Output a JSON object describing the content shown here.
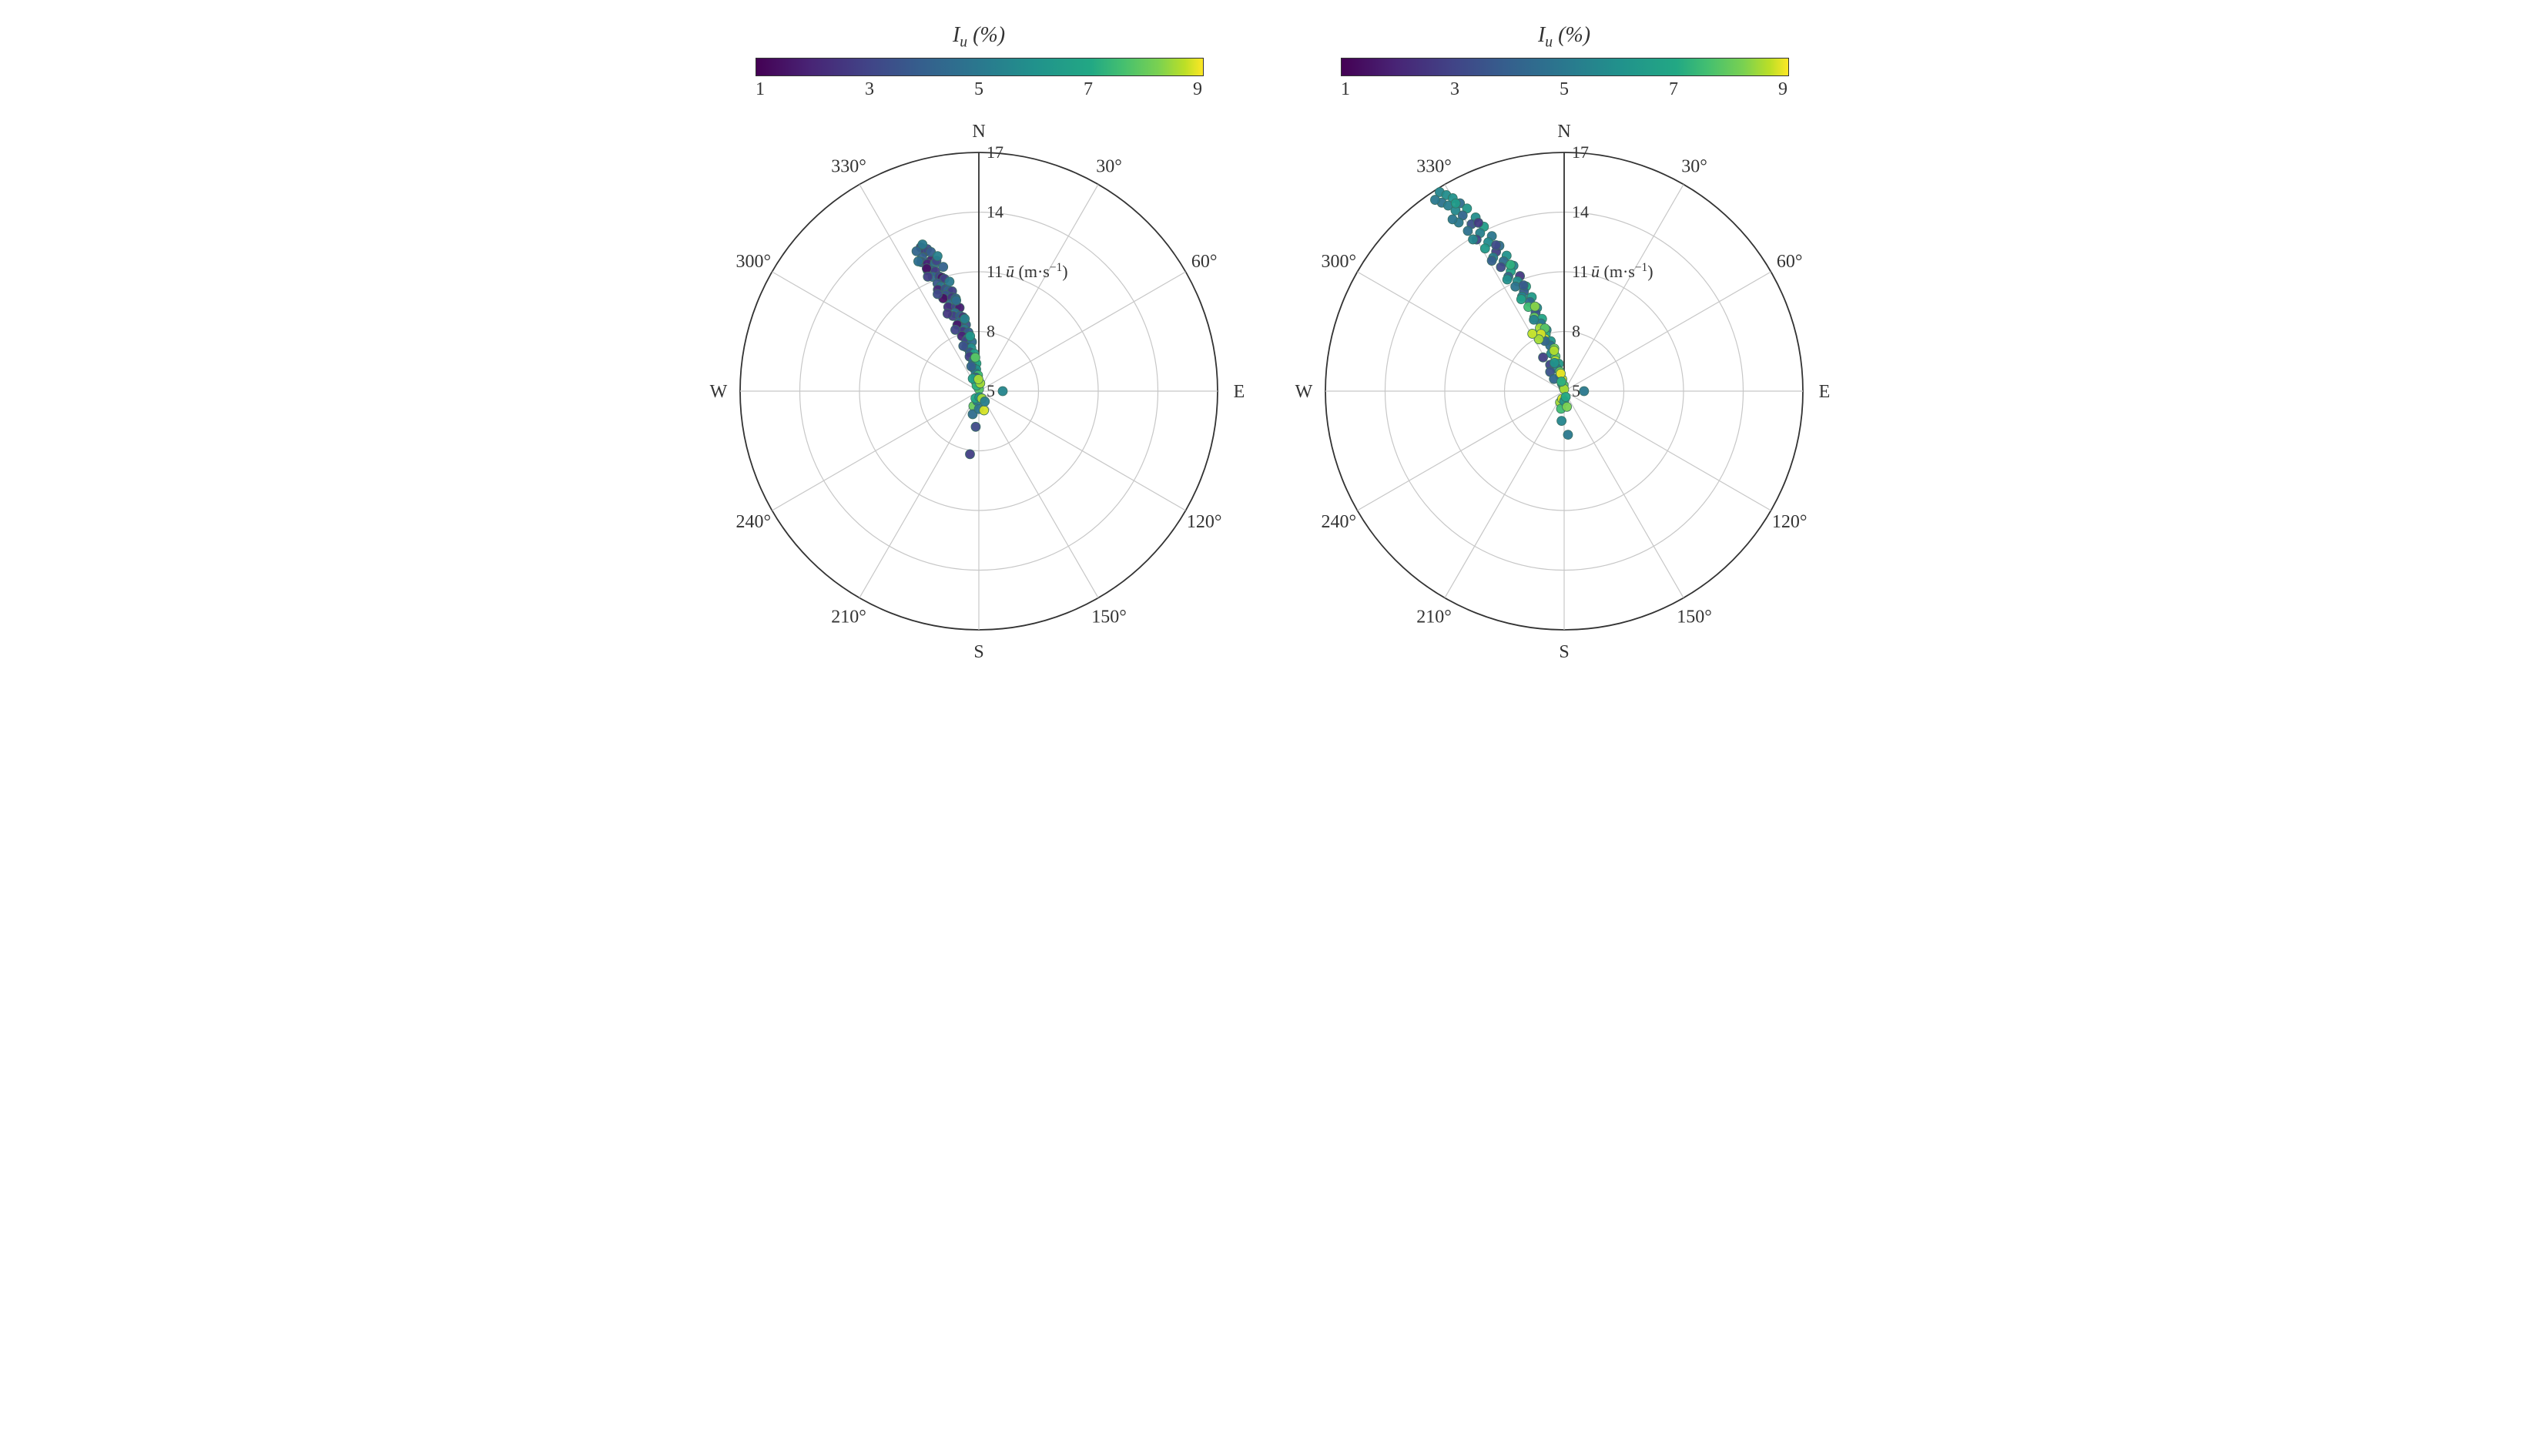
{
  "colorbar": {
    "title_html": "I<sub>u</sub> (%)",
    "ticks": [
      1,
      3,
      5,
      7,
      9
    ],
    "min": 1,
    "max": 9,
    "stops": [
      {
        "t": 0.0,
        "c": "#440154"
      },
      {
        "t": 0.12,
        "c": "#482475"
      },
      {
        "t": 0.25,
        "c": "#414487"
      },
      {
        "t": 0.37,
        "c": "#355f8d"
      },
      {
        "t": 0.5,
        "c": "#2a788e"
      },
      {
        "t": 0.62,
        "c": "#21918c"
      },
      {
        "t": 0.75,
        "c": "#22a884"
      },
      {
        "t": 0.82,
        "c": "#44bf70"
      },
      {
        "t": 0.9,
        "c": "#7ad151"
      },
      {
        "t": 0.96,
        "c": "#bddf26"
      },
      {
        "t": 1.0,
        "c": "#fde725"
      }
    ]
  },
  "polar": {
    "rmin": 5,
    "rmax": 17,
    "rticks": [
      5,
      8,
      11,
      14,
      17
    ],
    "rlabel_html": "u&#772; (m·s<sup>&#8722;1</sup>)",
    "angle_labels": [
      {
        "deg": 0,
        "txt": "N"
      },
      {
        "deg": 30,
        "txt": "30°"
      },
      {
        "deg": 60,
        "txt": "60°"
      },
      {
        "deg": 90,
        "txt": "E"
      },
      {
        "deg": 120,
        "txt": "120°"
      },
      {
        "deg": 150,
        "txt": "150°"
      },
      {
        "deg": 180,
        "txt": "S"
      },
      {
        "deg": 210,
        "txt": "210°"
      },
      {
        "deg": 240,
        "txt": "240°"
      },
      {
        "deg": 270,
        "txt": "W"
      },
      {
        "deg": 300,
        "txt": "300°"
      },
      {
        "deg": 330,
        "txt": "330°"
      }
    ],
    "size": 620,
    "padding": 50,
    "grid_color": "#c7c7c7",
    "outer_ring_color": "#333333",
    "marker_radius": 6,
    "marker_stroke": "#3a6e60",
    "label_fontsize": 24,
    "tick_fontsize": 22,
    "rlabel_fontsize": 22
  },
  "left": {
    "points": [
      {
        "dir": 338,
        "r": 12.8,
        "v": 2.2
      },
      {
        "dir": 339,
        "r": 12.5,
        "v": 2.6
      },
      {
        "dir": 340,
        "r": 12.6,
        "v": 3.2
      },
      {
        "dir": 337,
        "r": 12.3,
        "v": 4.0
      },
      {
        "dir": 336,
        "r": 12.1,
        "v": 3.5
      },
      {
        "dir": 340,
        "r": 12.0,
        "v": 1.8
      },
      {
        "dir": 338,
        "r": 11.9,
        "v": 2.0
      },
      {
        "dir": 341,
        "r": 11.8,
        "v": 4.5
      },
      {
        "dir": 342,
        "r": 11.9,
        "v": 3.1
      },
      {
        "dir": 337,
        "r": 11.6,
        "v": 2.4
      },
      {
        "dir": 339,
        "r": 11.5,
        "v": 3.8
      },
      {
        "dir": 340,
        "r": 11.4,
        "v": 2.7
      },
      {
        "dir": 338,
        "r": 11.2,
        "v": 4.2
      },
      {
        "dir": 341,
        "r": 11.1,
        "v": 3.0
      },
      {
        "dir": 342,
        "r": 11.0,
        "v": 1.6
      },
      {
        "dir": 343,
        "r": 10.9,
        "v": 2.9
      },
      {
        "dir": 339,
        "r": 10.8,
        "v": 3.6
      },
      {
        "dir": 340,
        "r": 10.6,
        "v": 4.8
      },
      {
        "dir": 338,
        "r": 10.5,
        "v": 2.1
      },
      {
        "dir": 342,
        "r": 10.4,
        "v": 3.3
      },
      {
        "dir": 343,
        "r": 10.3,
        "v": 4.0
      },
      {
        "dir": 345,
        "r": 10.2,
        "v": 2.8
      },
      {
        "dir": 341,
        "r": 10.1,
        "v": 3.5
      },
      {
        "dir": 339,
        "r": 10.0,
        "v": 1.4
      },
      {
        "dir": 344,
        "r": 9.9,
        "v": 2.6
      },
      {
        "dir": 346,
        "r": 9.8,
        "v": 3.9
      },
      {
        "dir": 342,
        "r": 9.6,
        "v": 4.4
      },
      {
        "dir": 340,
        "r": 9.5,
        "v": 2.3
      },
      {
        "dir": 345,
        "r": 9.4,
        "v": 3.1
      },
      {
        "dir": 347,
        "r": 9.3,
        "v": 1.8
      },
      {
        "dir": 343,
        "r": 9.1,
        "v": 4.7
      },
      {
        "dir": 341,
        "r": 9.0,
        "v": 2.9
      },
      {
        "dir": 346,
        "r": 8.9,
        "v": 3.7
      },
      {
        "dir": 348,
        "r": 8.8,
        "v": 2.5
      },
      {
        "dir": 344,
        "r": 8.6,
        "v": 4.1
      },
      {
        "dir": 342,
        "r": 8.5,
        "v": 1.6
      },
      {
        "dir": 349,
        "r": 8.4,
        "v": 3.4
      },
      {
        "dir": 347,
        "r": 8.2,
        "v": 4.9
      },
      {
        "dir": 345,
        "r": 8.1,
        "v": 2.7
      },
      {
        "dir": 350,
        "r": 8.0,
        "v": 3.8
      },
      {
        "dir": 343,
        "r": 7.9,
        "v": 2.0
      },
      {
        "dir": 348,
        "r": 7.7,
        "v": 5.2
      },
      {
        "dir": 346,
        "r": 7.6,
        "v": 3.0
      },
      {
        "dir": 352,
        "r": 7.5,
        "v": 4.5
      },
      {
        "dir": 344,
        "r": 7.3,
        "v": 2.4
      },
      {
        "dir": 350,
        "r": 7.2,
        "v": 5.8
      },
      {
        "dir": 347,
        "r": 7.0,
        "v": 3.6
      },
      {
        "dir": 353,
        "r": 6.9,
        "v": 6.5
      },
      {
        "dir": 345,
        "r": 6.8,
        "v": 2.8
      },
      {
        "dir": 351,
        "r": 6.6,
        "v": 5.0
      },
      {
        "dir": 349,
        "r": 6.5,
        "v": 4.2
      },
      {
        "dir": 355,
        "r": 6.4,
        "v": 7.0
      },
      {
        "dir": 347,
        "r": 6.2,
        "v": 3.3
      },
      {
        "dir": 353,
        "r": 6.1,
        "v": 6.0
      },
      {
        "dir": 350,
        "r": 5.9,
        "v": 4.8
      },
      {
        "dir": 357,
        "r": 5.8,
        "v": 7.5
      },
      {
        "dir": 348,
        "r": 5.7,
        "v": 3.9
      },
      {
        "dir": 355,
        "r": 5.5,
        "v": 8.2
      },
      {
        "dir": 352,
        "r": 5.4,
        "v": 5.5
      },
      {
        "dir": 0,
        "r": 5.3,
        "v": 6.8
      },
      {
        "dir": 350,
        "r": 5.2,
        "v": 4.4
      },
      {
        "dir": 5,
        "r": 5.1,
        "v": 7.8
      },
      {
        "dir": 342,
        "r": 5.5,
        "v": 8.0
      },
      {
        "dir": 338,
        "r": 5.3,
        "v": 7.2
      },
      {
        "dir": 10,
        "r": 5.4,
        "v": 8.5
      },
      {
        "dir": 334,
        "r": 5.7,
        "v": 6.5
      },
      {
        "dir": 200,
        "r": 5.8,
        "v": 8.0
      },
      {
        "dir": 195,
        "r": 6.2,
        "v": 4.5
      },
      {
        "dir": 190,
        "r": 5.5,
        "v": 5.0
      },
      {
        "dir": 185,
        "r": 6.8,
        "v": 3.2
      },
      {
        "dir": 205,
        "r": 5.4,
        "v": 7.0
      },
      {
        "dir": 180,
        "r": 5.9,
        "v": 4.8
      },
      {
        "dir": 175,
        "r": 5.3,
        "v": 6.0
      },
      {
        "dir": 188,
        "r": 8.2,
        "v": 2.8
      },
      {
        "dir": 165,
        "r": 6.0,
        "v": 8.8
      },
      {
        "dir": 158,
        "r": 5.4,
        "v": 8.5
      },
      {
        "dir": 150,
        "r": 5.6,
        "v": 5.2
      },
      {
        "dir": 90,
        "r": 6.2,
        "v": 5.5
      },
      {
        "dir": 339,
        "r": 12.9,
        "v": 5.0
      },
      {
        "dir": 336,
        "r": 12.7,
        "v": 4.2
      },
      {
        "dir": 341,
        "r": 12.4,
        "v": 3.9
      },
      {
        "dir": 335,
        "r": 12.2,
        "v": 4.6
      },
      {
        "dir": 343,
        "r": 12.1,
        "v": 5.3
      },
      {
        "dir": 337,
        "r": 11.7,
        "v": 1.5
      },
      {
        "dir": 344,
        "r": 11.5,
        "v": 4.1
      },
      {
        "dir": 336,
        "r": 11.3,
        "v": 2.8
      },
      {
        "dir": 345,
        "r": 10.7,
        "v": 5.0
      },
      {
        "dir": 337,
        "r": 10.3,
        "v": 3.2
      },
      {
        "dir": 346,
        "r": 9.7,
        "v": 4.6
      },
      {
        "dir": 338,
        "r": 9.2,
        "v": 2.6
      },
      {
        "dir": 349,
        "r": 8.7,
        "v": 5.4
      },
      {
        "dir": 339,
        "r": 8.3,
        "v": 3.0
      },
      {
        "dir": 351,
        "r": 7.8,
        "v": 6.2
      },
      {
        "dir": 341,
        "r": 7.4,
        "v": 3.5
      },
      {
        "dir": 354,
        "r": 6.7,
        "v": 7.8
      },
      {
        "dir": 343,
        "r": 6.3,
        "v": 4.0
      },
      {
        "dir": 358,
        "r": 5.6,
        "v": 8.5
      }
    ]
  },
  "right": {
    "points": [
      {
        "dir": 328,
        "r": 16.8,
        "v": 5.5
      },
      {
        "dir": 329,
        "r": 16.5,
        "v": 5.8
      },
      {
        "dir": 327,
        "r": 16.3,
        "v": 4.8
      },
      {
        "dir": 330,
        "r": 16.2,
        "v": 6.0
      },
      {
        "dir": 328,
        "r": 16.0,
        "v": 5.2
      },
      {
        "dir": 331,
        "r": 15.8,
        "v": 4.5
      },
      {
        "dir": 329,
        "r": 15.6,
        "v": 5.6
      },
      {
        "dir": 332,
        "r": 15.4,
        "v": 6.2
      },
      {
        "dir": 330,
        "r": 15.2,
        "v": 4.2
      },
      {
        "dir": 328,
        "r": 15.0,
        "v": 5.0
      },
      {
        "dir": 333,
        "r": 14.8,
        "v": 5.8
      },
      {
        "dir": 331,
        "r": 14.6,
        "v": 3.5
      },
      {
        "dir": 329,
        "r": 14.4,
        "v": 4.7
      },
      {
        "dir": 334,
        "r": 14.2,
        "v": 6.5
      },
      {
        "dir": 332,
        "r": 14.0,
        "v": 5.3
      },
      {
        "dir": 330,
        "r": 13.8,
        "v": 3.0
      },
      {
        "dir": 335,
        "r": 13.6,
        "v": 4.9
      },
      {
        "dir": 333,
        "r": 13.4,
        "v": 5.7
      },
      {
        "dir": 331,
        "r": 13.2,
        "v": 6.3
      },
      {
        "dir": 336,
        "r": 13.0,
        "v": 4.4
      },
      {
        "dir": 334,
        "r": 12.8,
        "v": 2.8
      },
      {
        "dir": 332,
        "r": 12.6,
        "v": 5.1
      },
      {
        "dir": 337,
        "r": 12.4,
        "v": 6.0
      },
      {
        "dir": 335,
        "r": 12.2,
        "v": 4.6
      },
      {
        "dir": 333,
        "r": 12.0,
        "v": 3.2
      },
      {
        "dir": 338,
        "r": 11.8,
        "v": 5.4
      },
      {
        "dir": 336,
        "r": 11.6,
        "v": 6.7
      },
      {
        "dir": 334,
        "r": 11.4,
        "v": 4.1
      },
      {
        "dir": 339,
        "r": 11.2,
        "v": 2.6
      },
      {
        "dir": 337,
        "r": 11.0,
        "v": 5.8
      },
      {
        "dir": 335,
        "r": 10.8,
        "v": 4.8
      },
      {
        "dir": 340,
        "r": 10.6,
        "v": 7.0
      },
      {
        "dir": 338,
        "r": 10.4,
        "v": 3.8
      },
      {
        "dir": 336,
        "r": 10.2,
        "v": 5.2
      },
      {
        "dir": 341,
        "r": 10.0,
        "v": 6.4
      },
      {
        "dir": 339,
        "r": 9.8,
        "v": 4.3
      },
      {
        "dir": 337,
        "r": 9.6,
        "v": 7.5
      },
      {
        "dir": 342,
        "r": 9.4,
        "v": 5.6
      },
      {
        "dir": 340,
        "r": 9.2,
        "v": 3.5
      },
      {
        "dir": 338,
        "r": 9.0,
        "v": 8.0
      },
      {
        "dir": 343,
        "r": 8.8,
        "v": 6.8
      },
      {
        "dir": 341,
        "r": 8.6,
        "v": 4.9
      },
      {
        "dir": 339,
        "r": 8.4,
        "v": 8.5
      },
      {
        "dir": 344,
        "r": 8.2,
        "v": 5.3
      },
      {
        "dir": 342,
        "r": 8.0,
        "v": 7.2
      },
      {
        "dir": 340,
        "r": 7.8,
        "v": 8.8
      },
      {
        "dir": 345,
        "r": 7.6,
        "v": 6.0
      },
      {
        "dir": 343,
        "r": 7.4,
        "v": 4.5
      },
      {
        "dir": 347,
        "r": 7.2,
        "v": 8.2
      },
      {
        "dir": 341,
        "r": 7.0,
        "v": 5.7
      },
      {
        "dir": 346,
        "r": 6.8,
        "v": 7.8
      },
      {
        "dir": 344,
        "r": 6.6,
        "v": 8.6
      },
      {
        "dir": 349,
        "r": 6.4,
        "v": 6.3
      },
      {
        "dir": 342,
        "r": 6.2,
        "v": 5.0
      },
      {
        "dir": 348,
        "r": 6.0,
        "v": 8.0
      },
      {
        "dir": 345,
        "r": 5.8,
        "v": 7.5
      },
      {
        "dir": 351,
        "r": 5.6,
        "v": 8.8
      },
      {
        "dir": 343,
        "r": 5.4,
        "v": 6.5
      },
      {
        "dir": 350,
        "r": 5.2,
        "v": 8.3
      },
      {
        "dir": 355,
        "r": 5.3,
        "v": 7.8
      },
      {
        "dir": 0,
        "r": 5.1,
        "v": 8.5
      },
      {
        "dir": 332,
        "r": 6.5,
        "v": 3.0
      },
      {
        "dir": 328,
        "r": 7.0,
        "v": 2.8
      },
      {
        "dir": 324,
        "r": 6.2,
        "v": 3.5
      },
      {
        "dir": 320,
        "r": 5.8,
        "v": 4.2
      },
      {
        "dir": 200,
        "r": 5.6,
        "v": 8.5
      },
      {
        "dir": 195,
        "r": 5.4,
        "v": 8.8
      },
      {
        "dir": 190,
        "r": 5.9,
        "v": 7.5
      },
      {
        "dir": 185,
        "r": 6.5,
        "v": 5.5
      },
      {
        "dir": 180,
        "r": 5.5,
        "v": 6.0
      },
      {
        "dir": 175,
        "r": 7.2,
        "v": 5.0
      },
      {
        "dir": 170,
        "r": 5.8,
        "v": 8.2
      },
      {
        "dir": 165,
        "r": 5.3,
        "v": 7.0
      },
      {
        "dir": 90,
        "r": 6.0,
        "v": 5.0
      },
      {
        "dir": 326,
        "r": 16.6,
        "v": 5.0
      },
      {
        "dir": 330,
        "r": 15.9,
        "v": 6.4
      },
      {
        "dir": 327,
        "r": 15.3,
        "v": 4.9
      },
      {
        "dir": 333,
        "r": 14.5,
        "v": 2.7
      },
      {
        "dir": 329,
        "r": 13.9,
        "v": 5.5
      },
      {
        "dir": 335,
        "r": 13.1,
        "v": 3.2
      },
      {
        "dir": 331,
        "r": 12.5,
        "v": 4.0
      },
      {
        "dir": 337,
        "r": 11.9,
        "v": 7.2
      },
      {
        "dir": 333,
        "r": 11.3,
        "v": 5.9
      },
      {
        "dir": 339,
        "r": 10.7,
        "v": 3.7
      },
      {
        "dir": 335,
        "r": 10.1,
        "v": 6.6
      },
      {
        "dir": 341,
        "r": 9.5,
        "v": 8.3
      },
      {
        "dir": 337,
        "r": 8.9,
        "v": 5.4
      },
      {
        "dir": 343,
        "r": 8.3,
        "v": 7.8
      },
      {
        "dir": 339,
        "r": 7.7,
        "v": 4.2
      },
      {
        "dir": 346,
        "r": 7.1,
        "v": 8.6
      },
      {
        "dir": 341,
        "r": 6.5,
        "v": 6.0
      },
      {
        "dir": 349,
        "r": 5.9,
        "v": 8.9
      },
      {
        "dir": 344,
        "r": 5.5,
        "v": 7.2
      },
      {
        "dir": 338,
        "r": 8.1,
        "v": 8.8
      },
      {
        "dir": 334,
        "r": 7.9,
        "v": 8.5
      },
      {
        "dir": 331,
        "r": 8.3,
        "v": 8.7
      }
    ]
  }
}
